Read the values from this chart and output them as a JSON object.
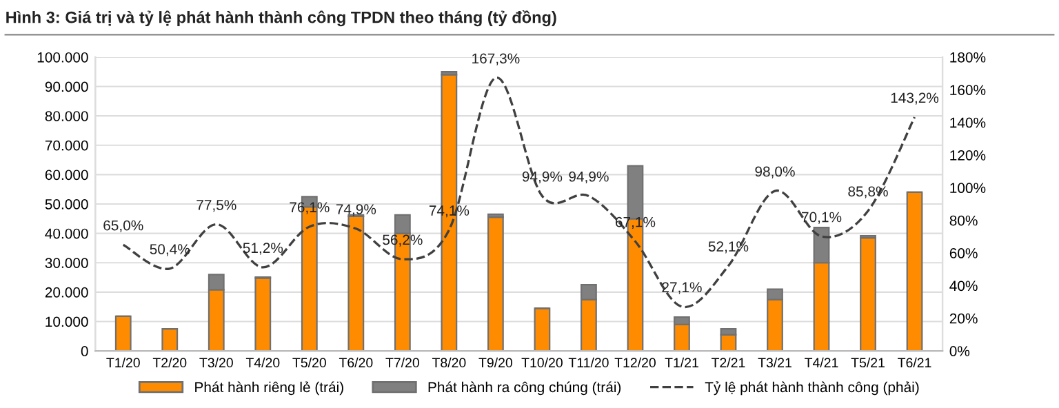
{
  "chart_data": {
    "type": "bar",
    "title": "Hình 3: Giá trị và tỷ lệ phát hành thành công TPDN theo tháng (tỷ đồng)",
    "categories": [
      "T1/20",
      "T2/20",
      "T3/20",
      "T4/20",
      "T5/20",
      "T6/20",
      "T7/20",
      "T8/20",
      "T9/20",
      "T10/20",
      "T11/20",
      "T12/20",
      "T1/21",
      "T2/21",
      "T3/21",
      "T4/21",
      "T5/21",
      "T6/21"
    ],
    "stacked": true,
    "series": [
      {
        "name": "Phát hành riêng lẻ (trái)",
        "color": "#ff8c00",
        "values": [
          11800,
          7500,
          20800,
          24800,
          49000,
          45800,
          40000,
          94000,
          45500,
          14500,
          17500,
          45000,
          9000,
          5500,
          17500,
          30000,
          38500,
          54000
        ]
      },
      {
        "name": "Phát hành ra công chúng (trái)",
        "color": "#808080",
        "values": [
          0,
          0,
          5200,
          300,
          3500,
          500,
          6300,
          1000,
          1000,
          0,
          5000,
          18000,
          2500,
          2000,
          3500,
          12000,
          700,
          0
        ]
      },
      {
        "name": "Tỷ lệ phát hành thành công (phải)",
        "type": "line",
        "axis": "y2",
        "color": "#404040",
        "line_style": "dashed",
        "marker": "none",
        "values": [
          65.0,
          50.4,
          77.5,
          51.2,
          76.1,
          74.9,
          56.2,
          74.1,
          167.3,
          94.9,
          94.9,
          67.1,
          27.1,
          52.1,
          98.0,
          70.1,
          85.8,
          143.2
        ],
        "value_labels": [
          "65,0%",
          "50,4%",
          "77,5%",
          "51,2%",
          "76,1%",
          "74,9%",
          "56,2%",
          "74,1%",
          "167,3%",
          "94,9%",
          "94,9%",
          "67,1%",
          "27,1%",
          "52,1%",
          "98,0%",
          "70,1%",
          "85,8%",
          "143,2%"
        ]
      }
    ],
    "ylim": [
      0,
      100000
    ],
    "yticks": [
      {
        "value": 0,
        "label": "0"
      },
      {
        "value": 10000,
        "label": "10.000"
      },
      {
        "value": 20000,
        "label": "20.000"
      },
      {
        "value": 30000,
        "label": "30.000"
      },
      {
        "value": 40000,
        "label": "40.000"
      },
      {
        "value": 50000,
        "label": "50.000"
      },
      {
        "value": 60000,
        "label": "60.000"
      },
      {
        "value": 70000,
        "label": "70.000"
      },
      {
        "value": 80000,
        "label": "80.000"
      },
      {
        "value": 90000,
        "label": "90.000"
      },
      {
        "value": 100000,
        "label": "100.000"
      }
    ],
    "y2lim": [
      0,
      180
    ],
    "y2ticks": [
      {
        "value": 0,
        "label": "0%"
      },
      {
        "value": 20,
        "label": "20%"
      },
      {
        "value": 40,
        "label": "40%"
      },
      {
        "value": 60,
        "label": "60%"
      },
      {
        "value": 80,
        "label": "80%"
      },
      {
        "value": 100,
        "label": "100%"
      },
      {
        "value": 120,
        "label": "120%"
      },
      {
        "value": 140,
        "label": "140%"
      },
      {
        "value": 160,
        "label": "160%"
      },
      {
        "value": 180,
        "label": "180%"
      }
    ],
    "grid": "y",
    "legend": "bottom"
  }
}
